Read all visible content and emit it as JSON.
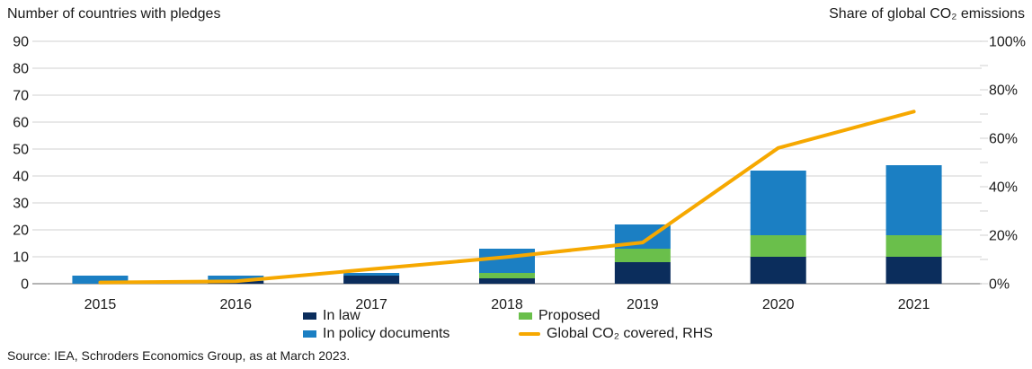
{
  "source": "Source: IEA, Schroders Economics Group, as at March 2023.",
  "colors": {
    "in_law": "#0b2d5c",
    "proposed": "#6abf4b",
    "in_policy": "#1b7fc3",
    "co2_line": "#f6a800",
    "gridline": "#d9d9d9",
    "axis_line": "#9c9c9c",
    "text": "#1a1a1a"
  },
  "legend": {
    "items": [
      {
        "label": "In law",
        "swatch": "square",
        "color": "#0b2d5c"
      },
      {
        "label": "Proposed",
        "swatch": "square",
        "color": "#6abf4b"
      },
      {
        "label": "In policy documents",
        "swatch": "square",
        "color": "#1b7fc3"
      },
      {
        "label": "Global CO₂ covered, RHS",
        "swatch": "line",
        "color": "#f6a800"
      }
    ]
  },
  "chart_data": {
    "type": "bar",
    "subtype": "stacked-bars-with-line",
    "categories": [
      "2015",
      "2016",
      "2017",
      "2018",
      "2019",
      "2020",
      "2021"
    ],
    "series": [
      {
        "name": "In law",
        "type": "bar",
        "color": "#0b2d5c",
        "values": [
          0,
          1,
          3,
          2,
          8,
          10,
          10
        ]
      },
      {
        "name": "Proposed",
        "type": "bar",
        "color": "#6abf4b",
        "values": [
          0,
          0,
          0,
          2,
          5,
          8,
          8
        ]
      },
      {
        "name": "In policy documents",
        "type": "bar",
        "color": "#1b7fc3",
        "values": [
          3,
          2,
          1,
          9,
          9,
          24,
          26
        ]
      },
      {
        "name": "Global CO₂ covered, RHS",
        "type": "line",
        "axis": "right",
        "color": "#f6a800",
        "values": [
          0.5,
          1,
          6,
          11,
          17,
          56,
          71
        ]
      }
    ],
    "left_axis": {
      "title": "Number of countries with pledges",
      "min": 0,
      "max": 90,
      "label_step": 10,
      "suffix": ""
    },
    "right_axis": {
      "title": "Share of global CO₂ emissions",
      "min": 0,
      "max": 100,
      "label_step": 20,
      "tick_step": 10,
      "suffix": "%"
    },
    "grid": true,
    "legend_position": "bottom"
  }
}
